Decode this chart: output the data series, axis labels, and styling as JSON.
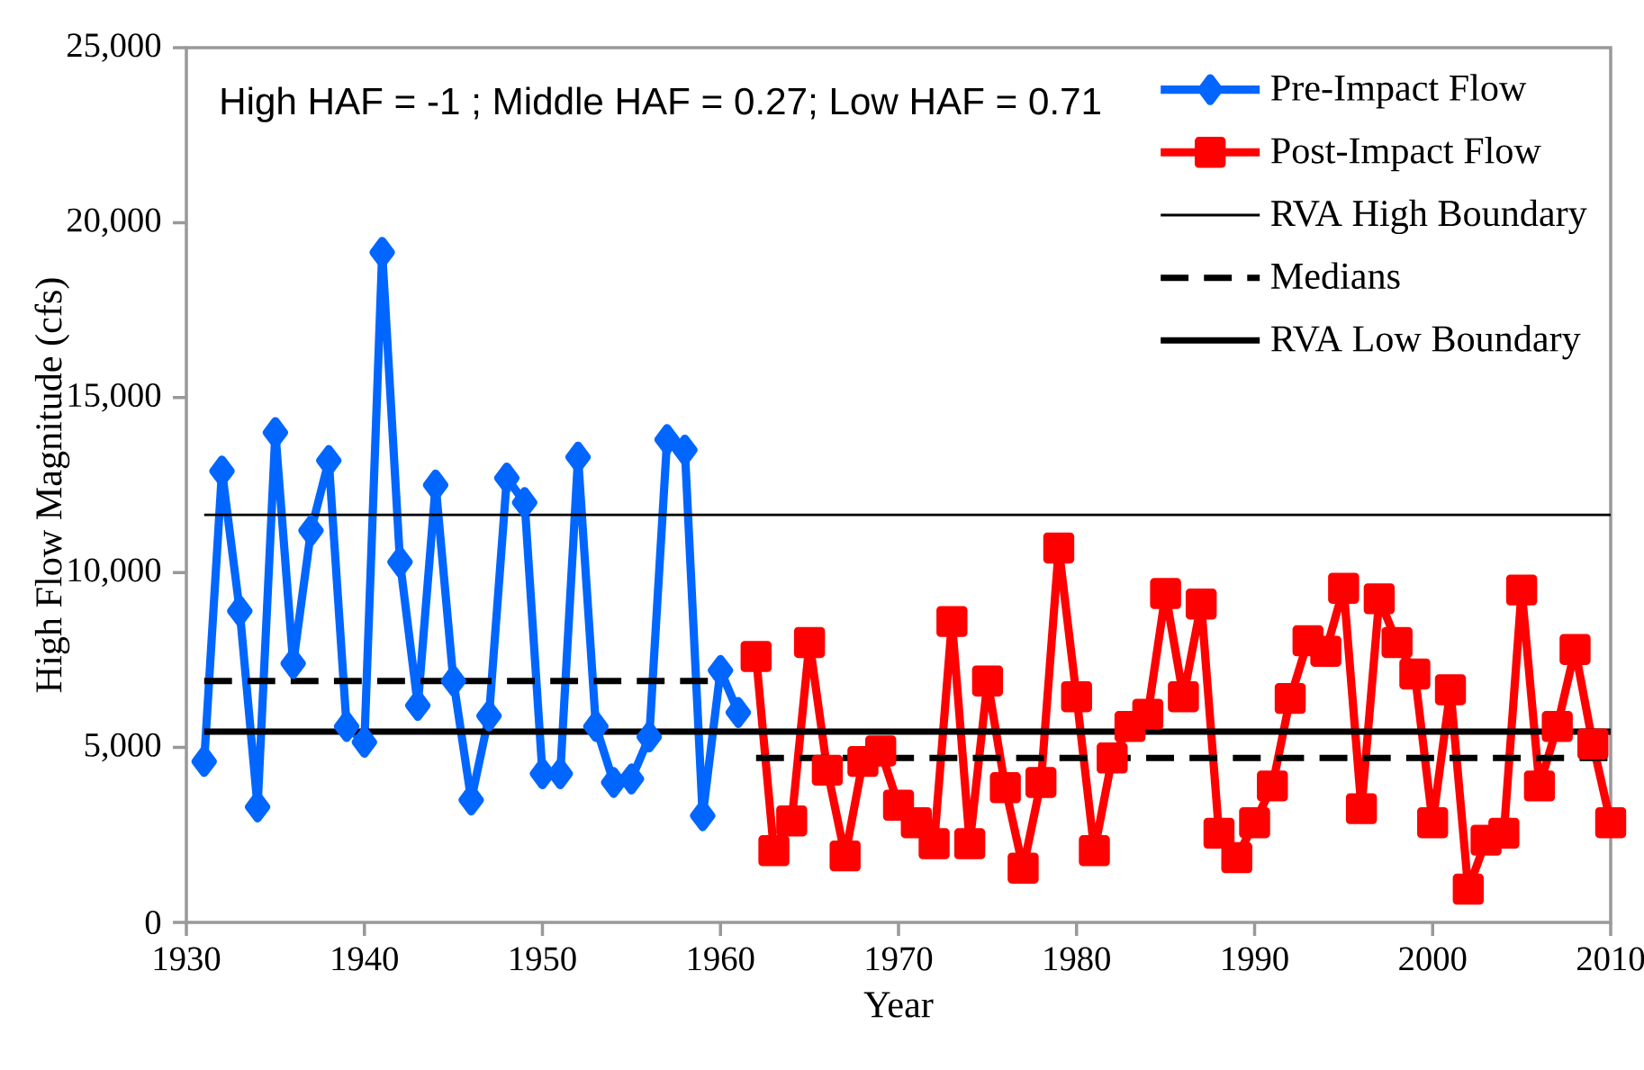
{
  "chart_data": {
    "type": "line",
    "xlabel": "Year",
    "ylabel": "High Flow Magnitude (cfs)",
    "annotations": [
      "High HAF = -1 ; Middle HAF = 0.27; Low HAF = 0.71"
    ],
    "xlim": [
      1930,
      2010
    ],
    "ylim": [
      0,
      25000
    ],
    "xticks": [
      1930,
      1940,
      1950,
      1960,
      1970,
      1980,
      1990,
      2000,
      2010
    ],
    "yticks": [
      {
        "value": 0,
        "label": "0"
      },
      {
        "value": 5000,
        "label": "5,000"
      },
      {
        "value": 10000,
        "label": "10,000"
      },
      {
        "value": 15000,
        "label": "15,000"
      },
      {
        "value": 20000,
        "label": "20,000"
      },
      {
        "value": 25000,
        "label": "25,000"
      }
    ],
    "legend": "top right",
    "series": [
      {
        "name": "Pre-Impact Flow",
        "color": "#0066ff",
        "marker": "diamond",
        "line_style": "solid",
        "x": [
          1931,
          1932,
          1933,
          1934,
          1935,
          1936,
          1937,
          1938,
          1939,
          1940,
          1941,
          1942,
          1943,
          1944,
          1945,
          1946,
          1947,
          1948,
          1949,
          1950,
          1951,
          1952,
          1953,
          1954,
          1955,
          1956,
          1957,
          1958,
          1959,
          1960,
          1961
        ],
        "values": [
          4600,
          12900,
          8900,
          3300,
          14000,
          7400,
          11200,
          13200,
          5600,
          5150,
          19150,
          10300,
          6200,
          12500,
          6900,
          3500,
          5900,
          12700,
          12000,
          4250,
          4250,
          13300,
          5600,
          4000,
          4100,
          5300,
          13800,
          13500,
          3050,
          7200,
          6000
        ]
      },
      {
        "name": "Post-Impact Flow",
        "color": "#ff0000",
        "marker": "square",
        "line_style": "solid",
        "x": [
          1962,
          1963,
          1964,
          1965,
          1966,
          1967,
          1968,
          1969,
          1970,
          1971,
          1972,
          1973,
          1974,
          1975,
          1976,
          1977,
          1978,
          1979,
          1980,
          1981,
          1982,
          1983,
          1984,
          1985,
          1986,
          1987,
          1988,
          1989,
          1990,
          1991,
          1992,
          1993,
          1994,
          1995,
          1996,
          1997,
          1998,
          1999,
          2000,
          2001,
          2002,
          2003,
          2004,
          2005,
          2006,
          2007,
          2008,
          2009,
          2010
        ],
        "values": [
          7600,
          2050,
          2900,
          8000,
          4350,
          1900,
          4600,
          4900,
          3350,
          2850,
          2250,
          8600,
          2250,
          6900,
          3850,
          1550,
          4000,
          10700,
          6450,
          2050,
          4700,
          5600,
          5950,
          9400,
          6450,
          9100,
          2550,
          1850,
          2850,
          3900,
          6400,
          8050,
          7750,
          9550,
          3250,
          9250,
          8000,
          7100,
          2850,
          6650,
          950,
          2350,
          2550,
          9500,
          3900,
          5600,
          7800,
          5100,
          2850
        ]
      },
      {
        "name": "RVA High Boundary",
        "color": "#000000",
        "marker": "none",
        "line_style": "solid",
        "x": [
          1931,
          2010
        ],
        "values": [
          11650,
          11650
        ]
      },
      {
        "name": "Medians",
        "color": "#000000",
        "marker": "none",
        "line_style": "dashed",
        "x": [
          1931,
          1959.4
        ],
        "values": [
          6900,
          6900
        ]
      },
      {
        "color": "#000000",
        "marker": "none",
        "line_style": "dashed",
        "x": [
          1962,
          2010
        ],
        "values": [
          4700,
          4700
        ]
      },
      {
        "name": "RVA Low Boundary",
        "color": "#000000",
        "marker": "none",
        "line_style": "solid",
        "x": [
          1931,
          2010
        ],
        "values": [
          5450,
          5450
        ]
      }
    ]
  }
}
